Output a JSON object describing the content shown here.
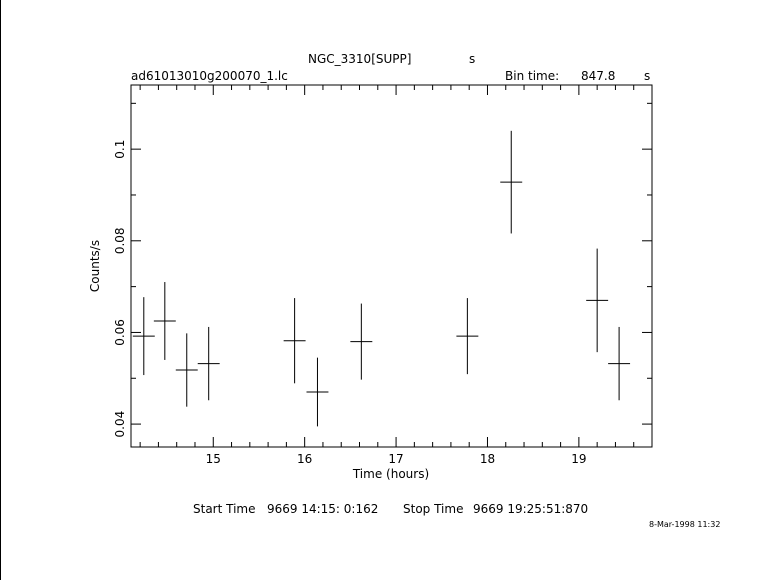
{
  "header": {
    "object": "NGC_3310[SUPP]",
    "object_unit": "s",
    "file": "ad61013010g200070_1.lc",
    "bin_label": "Bin time:",
    "bin_value": "847.8",
    "bin_unit": "s"
  },
  "footer": {
    "start_label": "Start Time",
    "start_value": "9669  14:15: 0:162",
    "stop_label": "Stop Time",
    "stop_value": "9669  19:25:51:870",
    "date_stamp": "8-Mar-1998 11:32"
  },
  "chart_data": {
    "type": "scatter",
    "title": "NGC_3310[SUPP]",
    "xlabel": "Time (hours)",
    "ylabel": "Counts/s",
    "xlim": [
      14.1,
      19.8
    ],
    "ylim": [
      0.035,
      0.114
    ],
    "xticks": [
      15,
      16,
      17,
      18,
      19
    ],
    "yticks": [
      0.04,
      0.06,
      0.08,
      0.1
    ],
    "ytick_labels": [
      "0.04",
      "0.06",
      "0.08",
      "0.1"
    ],
    "grid": false,
    "points": [
      {
        "x": 14.24,
        "y": 0.0592,
        "xerr": 0.12,
        "yerr": 0.0085
      },
      {
        "x": 14.47,
        "y": 0.0625,
        "xerr": 0.12,
        "yerr": 0.0085
      },
      {
        "x": 14.71,
        "y": 0.0518,
        "xerr": 0.12,
        "yerr": 0.008
      },
      {
        "x": 14.95,
        "y": 0.0532,
        "xerr": 0.12,
        "yerr": 0.008
      },
      {
        "x": 15.89,
        "y": 0.0582,
        "xerr": 0.12,
        "yerr": 0.0093
      },
      {
        "x": 16.14,
        "y": 0.047,
        "xerr": 0.12,
        "yerr": 0.0075
      },
      {
        "x": 16.62,
        "y": 0.058,
        "xerr": 0.12,
        "yerr": 0.0083
      },
      {
        "x": 17.78,
        "y": 0.0592,
        "xerr": 0.12,
        "yerr": 0.0083
      },
      {
        "x": 18.26,
        "y": 0.0928,
        "xerr": 0.12,
        "yerr": 0.0112
      },
      {
        "x": 19.2,
        "y": 0.067,
        "xerr": 0.12,
        "yerr": 0.0113
      },
      {
        "x": 19.44,
        "y": 0.0532,
        "xerr": 0.12,
        "yerr": 0.008
      }
    ]
  }
}
